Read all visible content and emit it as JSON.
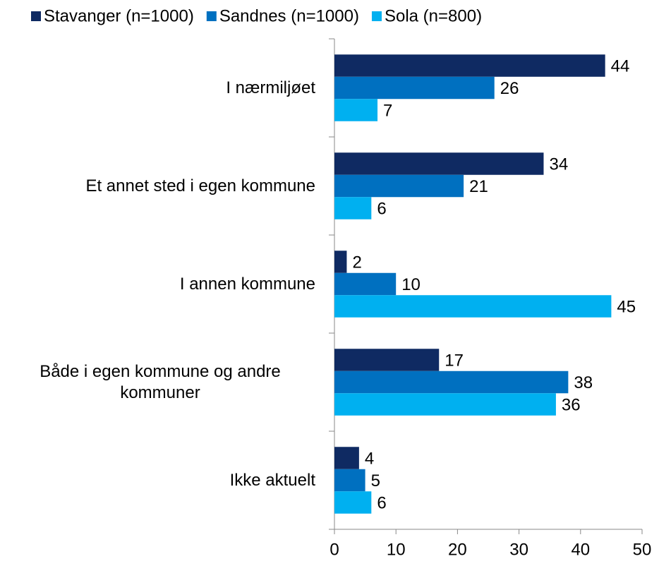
{
  "chart_data": {
    "type": "barh",
    "categories": [
      "I nærmiljøet",
      "Et annet sted i egen kommune",
      "I annen kommune ",
      "Både i egen kommune og andre kommuner",
      "Ikke aktuelt"
    ],
    "series": [
      {
        "name": "Stavanger (n=1000)",
        "color": "#0f2a62",
        "values": [
          44,
          34,
          2,
          17,
          4
        ]
      },
      {
        "name": "Sandnes (n=1000)",
        "color": "#0070c0",
        "values": [
          26,
          21,
          10,
          38,
          5
        ]
      },
      {
        "name": "Sola (n=800)",
        "color": "#00b0f0",
        "values": [
          7,
          6,
          45,
          36,
          6
        ]
      }
    ],
    "xlim": [
      0,
      50
    ],
    "xticks": [
      0,
      10,
      20,
      30,
      40,
      50
    ],
    "legend": "top"
  }
}
